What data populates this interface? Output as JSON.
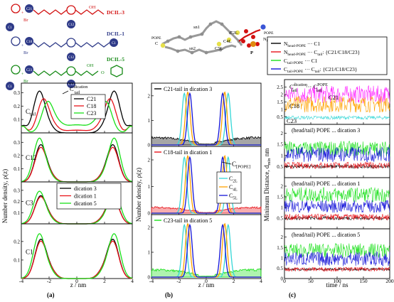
{
  "colors": {
    "black": "#000000",
    "red": "#e8141a",
    "green": "#19e019",
    "blue": "#1414d8",
    "cyan": "#35d7d7",
    "orange": "#ffa200",
    "magenta": "#ff22ff",
    "struct_red": "#d21010",
    "struct_blue": "#2e3a88",
    "struct_green": "#178a17"
  },
  "structures": {
    "dcil3": {
      "label": "DCIL-3",
      "c12": "C12",
      "c21": "C21",
      "c1": "C1",
      "br": "Br",
      "oh": "OH",
      "plus": "+"
    },
    "dcil1": {
      "label": "DCIL-1",
      "c12": "C12",
      "c18": "C18",
      "c1": "C1",
      "br": "Br",
      "plus": "+"
    },
    "dcil5": {
      "label": "DCIL-5",
      "c12": "C12",
      "c23": "C23",
      "c1": "C1",
      "br": "Br",
      "oh": "OH",
      "o": "O",
      "plus": "+"
    }
  },
  "molecule": {
    "sn1": "sn1",
    "sn2": "sn2",
    "c2l": "C2L",
    "c4l": "C4L",
    "c5l": "C5L",
    "p": "P",
    "pope_top": "POPE",
    "c_left": "C",
    "pope_right": "POPE",
    "nhead": "N",
    "nhead_sub": "head"
  },
  "legend_c": {
    "items": [
      {
        "main": "N",
        "sub": "head-POPE",
        "rest": " ··· C1",
        "color": "#000000"
      },
      {
        "main": "N",
        "sub": "head-POPE",
        "rest": " ··· C",
        "sub2": "tail",
        "rest2": ": {C21/C18/C23}",
        "color": "#e8141a"
      },
      {
        "main": "C",
        "sub": "tail-POPE",
        "rest": " ··· C1",
        "color": "#19e019"
      },
      {
        "main": "C",
        "sub": "tail-POPE",
        "rest": " ··· C",
        "sub2": "tail",
        "rest2": ": {C21/C18/C23}",
        "color": "#1414d8"
      }
    ]
  },
  "panel_letters": {
    "a": "(a)",
    "b": "(b)",
    "c": "(c)"
  },
  "axis_labels": {
    "a_y": "Number density, ρ(z)",
    "b_y": "Number density, ρ(z)",
    "c_y": "Minimum Distance, d",
    "c_y_sub": "min",
    "c_y_unit": " nm",
    "a_x": "z / nm",
    "b_x": "z / nm",
    "c_x": "time / ns"
  },
  "panel_a": {
    "legend_top": [
      "C21",
      "C18",
      "C23"
    ],
    "legend_mid": [
      "dication 3",
      "dication 1",
      "dication 5"
    ],
    "rows": [
      {
        "label": "C",
        "label_sub": "tail",
        "ticks": [
          "0.1",
          "0.2",
          "0.3"
        ],
        "annot": "C",
        "annot_sup": "dication",
        "annot_sub": "tail"
      },
      {
        "label": "C12",
        "ticks": [
          "0.1",
          "0.2",
          "0.3"
        ]
      },
      {
        "label": "C3",
        "ticks": [
          "0.1",
          "0.2",
          "0.3"
        ]
      },
      {
        "label": "C1",
        "ticks": [
          "0.1",
          "0.2"
        ]
      }
    ],
    "xticks": [
      "-4",
      "-2",
      "0",
      "2",
      "4"
    ]
  },
  "panel_b": {
    "rows": [
      {
        "title": "C21-tail in dication 3",
        "ticks": [
          "0",
          "1",
          "2"
        ]
      },
      {
        "title": "C18-tail in dication 1",
        "ticks": [
          "0",
          "1",
          "2"
        ],
        "annot": "C",
        "annot_sub": "[POPE]",
        "legend": [
          "C",
          "C",
          "C"
        ],
        "legend_sub": [
          "2L",
          "4L",
          "5L"
        ]
      },
      {
        "title": "C23-tail in dication 5",
        "ticks": [
          "0",
          "1",
          "2"
        ]
      }
    ],
    "xticks": [
      "-4",
      "-2",
      "0",
      "2",
      "4"
    ]
  },
  "panel_c": {
    "rows": [
      {
        "title": "C",
        "title_sub": "tail",
        "title_sup": "dication",
        "title2": " ··· C",
        "title2_sub": "tail",
        "title2_sup": "POPE",
        "labels": [
          "C18",
          "C21",
          "C23"
        ],
        "ticks": [
          "0.5",
          "1",
          "1.5",
          "2",
          "2.5"
        ]
      },
      {
        "title": "(head/tail) POPE ... dication 3",
        "labels": [
          "C21"
        ],
        "ticks": [
          "0.5",
          "1",
          "1.5",
          "2"
        ]
      },
      {
        "title": "(head/tail) POPE ... dication 1",
        "labels": [
          "C18"
        ],
        "ticks": [
          "0.5",
          "1",
          "1.5",
          "2"
        ]
      },
      {
        "title": "(head/tail) POPE ... dication 5",
        "labels": [
          "C23"
        ],
        "ticks": [
          "0",
          "0.5",
          "1",
          "1.5",
          "2"
        ]
      }
    ],
    "xticks": [
      "0",
      "50",
      "100",
      "150",
      "200"
    ]
  },
  "chart_data": [
    {
      "type": "line",
      "panel": "a",
      "xlabel": "z / nm",
      "ylabel": "Number density, ρ(z)",
      "xlim": [
        -4,
        4
      ],
      "rows": [
        {
          "label": "Ctail",
          "ylim": [
            0,
            0.35
          ],
          "series": [
            {
              "name": "C21",
              "color": "#000000",
              "peak_z": 2.7,
              "peak": 0.31,
              "mid": 0.0
            },
            {
              "name": "C18",
              "color": "#e8141a",
              "peak_z": 2.4,
              "peak": 0.25,
              "mid": 0.02
            },
            {
              "name": "C23",
              "color": "#19e019",
              "peak_z": 2.1,
              "peak": 0.22,
              "mid": 0.06
            }
          ]
        },
        {
          "label": "C12",
          "ylim": [
            0,
            0.35
          ],
          "series": [
            {
              "name": "dication 3",
              "color": "#000000",
              "peak_z": 2.6,
              "peak": 0.28,
              "mid": 0.0
            },
            {
              "name": "dication 1",
              "color": "#e8141a",
              "peak_z": 2.6,
              "peak": 0.26,
              "mid": 0.0
            },
            {
              "name": "dication 5",
              "color": "#19e019",
              "peak_z": 2.7,
              "peak": 0.33,
              "mid": 0.0
            }
          ]
        },
        {
          "label": "C3",
          "ylim": [
            0,
            0.35
          ],
          "series": [
            {
              "name": "dication 3",
              "color": "#000000",
              "peak_z": 2.6,
              "peak": 0.25,
              "mid": 0.0
            },
            {
              "name": "dication 1",
              "color": "#e8141a",
              "peak_z": 2.6,
              "peak": 0.24,
              "mid": 0.0
            },
            {
              "name": "dication 5",
              "color": "#19e019",
              "peak_z": 2.7,
              "peak": 0.29,
              "mid": 0.0
            }
          ]
        },
        {
          "label": "C1",
          "ylim": [
            0,
            0.28
          ],
          "series": [
            {
              "name": "dication 3",
              "color": "#000000",
              "peak_z": 2.6,
              "peak": 0.21,
              "mid": 0.0
            },
            {
              "name": "dication 1",
              "color": "#e8141a",
              "peak_z": 2.6,
              "peak": 0.2,
              "mid": 0.0
            },
            {
              "name": "dication 5",
              "color": "#19e019",
              "peak_z": 2.7,
              "peak": 0.24,
              "mid": 0.0
            }
          ]
        }
      ]
    },
    {
      "type": "line",
      "panel": "b",
      "xlabel": "z / nm",
      "ylabel": "Number density, ρ(z)",
      "xlim": [
        -4,
        4
      ],
      "ylim": [
        0,
        2.4
      ],
      "rows": [
        {
          "label": "C21-tail in dication 3",
          "fill_color": "#000000",
          "fill_peak": 0.35
        },
        {
          "label": "C18-tail in dication 1",
          "fill_color": "#e8141a",
          "fill_peak": 0.25
        },
        {
          "label": "C23-tail in dication 5",
          "fill_color": "#19e019",
          "fill_peak": 0.35
        }
      ],
      "series": [
        {
          "name": "C2L",
          "color": "#35d7d7",
          "peak_z": 1.6,
          "peak": 2.1
        },
        {
          "name": "C4L",
          "color": "#ffa200",
          "peak_z": 1.35,
          "peak": 2.15
        },
        {
          "name": "C5L",
          "color": "#1414d8",
          "peak_z": 1.2,
          "peak": 2.1
        }
      ]
    },
    {
      "type": "line",
      "panel": "c",
      "xlabel": "time / ns",
      "ylabel": "Minimum Distance, dmin nm",
      "xlim": [
        0,
        200
      ],
      "rows": [
        {
          "ylim": [
            0,
            3
          ],
          "series": [
            {
              "name": "C21",
              "color": "#ff22ff",
              "level": 2.0,
              "spread": 0.6
            },
            {
              "name": "C18",
              "color": "#ffa200",
              "level": 1.35,
              "spread": 0.55
            },
            {
              "name": "C23",
              "color": "#35d7d7",
              "level": 0.45,
              "spread": 0.12
            }
          ]
        },
        {
          "ylim": [
            0,
            2.4
          ],
          "series": [
            {
              "name": "Nhead-POPE ... C1",
              "color": "#000000",
              "level": 0.5,
              "spread": 0.08
            },
            {
              "name": "Nhead-POPE ... Ctail",
              "color": "#e8141a",
              "level": 0.55,
              "spread": 0.15
            },
            {
              "name": "Ctail-POPE ... C1",
              "color": "#19e019",
              "level": 1.3,
              "spread": 0.35
            },
            {
              "name": "Ctail-POPE ... Ctail",
              "color": "#1414d8",
              "level": 1.05,
              "spread": 0.35
            }
          ]
        },
        {
          "ylim": [
            0,
            2.4
          ],
          "series": [
            {
              "name": "Nhead-POPE ... C1",
              "color": "#000000",
              "level": 0.5,
              "spread": 0.08
            },
            {
              "name": "Nhead-POPE ... Ctail",
              "color": "#e8141a",
              "level": 0.55,
              "spread": 0.15
            },
            {
              "name": "Ctail-POPE ... C1",
              "color": "#19e019",
              "level": 1.6,
              "spread": 0.35
            },
            {
              "name": "Ctail-POPE ... Ctail",
              "color": "#1414d8",
              "level": 1.05,
              "spread": 0.3
            }
          ]
        },
        {
          "ylim": [
            0,
            2.4
          ],
          "series": [
            {
              "name": "Nhead-POPE ... C1",
              "color": "#000000",
              "level": 0.45,
              "spread": 0.06
            },
            {
              "name": "Nhead-POPE ... Ctail",
              "color": "#e8141a",
              "level": 0.45,
              "spread": 0.1
            },
            {
              "name": "Ctail-POPE ... C1",
              "color": "#19e019",
              "level": 1.35,
              "spread": 0.35
            },
            {
              "name": "Ctail-POPE ... Ctail",
              "color": "#1414d8",
              "level": 0.95,
              "spread": 0.35
            }
          ]
        }
      ]
    }
  ]
}
